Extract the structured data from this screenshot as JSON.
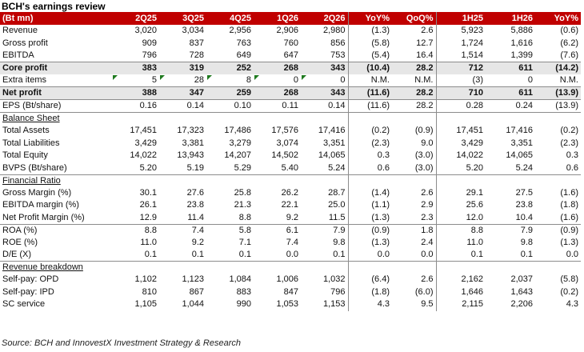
{
  "title": "BCH's earnings review",
  "header": [
    "(Bt mn)",
    "2Q25",
    "3Q25",
    "4Q25",
    "1Q26",
    "2Q26",
    "YoY%",
    "QoQ%",
    "1H25",
    "1H26",
    "YoY%"
  ],
  "rows": [
    {
      "label": "Revenue",
      "values": [
        "3,020",
        "3,034",
        "2,956",
        "2,906",
        "2,980",
        "(1.3)",
        "2.6",
        "5,923",
        "5,886",
        "(0.6)"
      ]
    },
    {
      "label": "Gross profit",
      "values": [
        "909",
        "837",
        "763",
        "760",
        "856",
        "(5.8)",
        "12.7",
        "1,724",
        "1,616",
        "(6.2)"
      ]
    },
    {
      "label": "EBITDA",
      "values": [
        "796",
        "728",
        "649",
        "647",
        "753",
        "(5.4)",
        "16.4",
        "1,514",
        "1,399",
        "(7.6)"
      ]
    },
    {
      "label": "Core profit",
      "values": [
        "383",
        "319",
        "252",
        "268",
        "343",
        "(10.4)",
        "28.2",
        "712",
        "611",
        "(14.2)"
      ]
    },
    {
      "label": "Extra items",
      "values": [
        "5",
        "28",
        "8",
        "0",
        "0",
        "N.M.",
        "N.M.",
        "(3)",
        "0",
        "N.M."
      ]
    },
    {
      "label": "Net profit",
      "values": [
        "388",
        "347",
        "259",
        "268",
        "343",
        "(11.6)",
        "28.2",
        "710",
        "611",
        "(13.9)"
      ]
    },
    {
      "label": "EPS (Bt/share)",
      "values": [
        "0.16",
        "0.14",
        "0.10",
        "0.11",
        "0.14",
        "(11.6)",
        "28.2",
        "0.28",
        "0.24",
        "(13.9)"
      ]
    },
    {
      "label": "Balance Sheet",
      "values": [
        "",
        "",
        "",
        "",
        "",
        "",
        "",
        "",
        "",
        ""
      ]
    },
    {
      "label": "Total Assets",
      "values": [
        "17,451",
        "17,323",
        "17,486",
        "17,576",
        "17,416",
        "(0.2)",
        "(0.9)",
        "17,451",
        "17,416",
        "(0.2)"
      ]
    },
    {
      "label": "Total Liabilities",
      "values": [
        "3,429",
        "3,381",
        "3,279",
        "3,074",
        "3,351",
        "(2.3)",
        "9.0",
        "3,429",
        "3,351",
        "(2.3)"
      ]
    },
    {
      "label": "Total Equity",
      "values": [
        "14,022",
        "13,943",
        "14,207",
        "14,502",
        "14,065",
        "0.3",
        "(3.0)",
        "14,022",
        "14,065",
        "0.3"
      ]
    },
    {
      "label": "BVPS (Bt/share)",
      "values": [
        "5.20",
        "5.19",
        "5.29",
        "5.40",
        "5.24",
        "0.6",
        "(3.0)",
        "5.20",
        "5.24",
        "0.6"
      ]
    },
    {
      "label": "Financial Ratio",
      "values": [
        "",
        "",
        "",
        "",
        "",
        "",
        "",
        "",
        "",
        ""
      ]
    },
    {
      "label": "Gross Margin (%)",
      "values": [
        "30.1",
        "27.6",
        "25.8",
        "26.2",
        "28.7",
        "(1.4)",
        "2.6",
        "29.1",
        "27.5",
        "(1.6)"
      ]
    },
    {
      "label": "EBITDA margin (%)",
      "values": [
        "26.1",
        "23.8",
        "21.3",
        "22.1",
        "25.0",
        "(1.1)",
        "2.9",
        "25.6",
        "23.8",
        "(1.8)"
      ]
    },
    {
      "label": "Net Profit Margin (%)",
      "values": [
        "12.9",
        "11.4",
        "8.8",
        "9.2",
        "11.5",
        "(1.3)",
        "2.3",
        "12.0",
        "10.4",
        "(1.6)"
      ]
    },
    {
      "label": "ROA (%)",
      "values": [
        "8.8",
        "7.4",
        "5.8",
        "6.1",
        "7.9",
        "(0.9)",
        "1.8",
        "8.8",
        "7.9",
        "(0.9)"
      ]
    },
    {
      "label": "ROE (%)",
      "values": [
        "11.0",
        "9.2",
        "7.1",
        "7.4",
        "9.8",
        "(1.3)",
        "2.4",
        "11.0",
        "9.8",
        "(1.3)"
      ]
    },
    {
      "label": "D/E (X)",
      "values": [
        "0.1",
        "0.1",
        "0.1",
        "0.0",
        "0.1",
        "0.0",
        "0.0",
        "0.1",
        "0.1",
        "0.0"
      ]
    },
    {
      "label": "Revenue breakdown",
      "values": [
        "",
        "",
        "",
        "",
        "",
        "",
        "",
        "",
        "",
        ""
      ]
    },
    {
      "label": "Self-pay: OPD",
      "values": [
        "1,102",
        "1,123",
        "1,084",
        "1,006",
        "1,032",
        "(6.4)",
        "2.6",
        "2,162",
        "2,037",
        "(5.8)"
      ]
    },
    {
      "label": "Self-pay: IPD",
      "values": [
        "810",
        "867",
        "883",
        "847",
        "796",
        "(1.8)",
        "(6.0)",
        "1,646",
        "1,643",
        "(0.2)"
      ]
    },
    {
      "label": "SC service",
      "values": [
        "1,105",
        "1,044",
        "990",
        "1,053",
        "1,153",
        "4.3",
        "9.5",
        "2,115",
        "2,206",
        "4.3"
      ]
    }
  ],
  "source": "Source: BCH and InnovestX Investment Strategy & Research"
}
